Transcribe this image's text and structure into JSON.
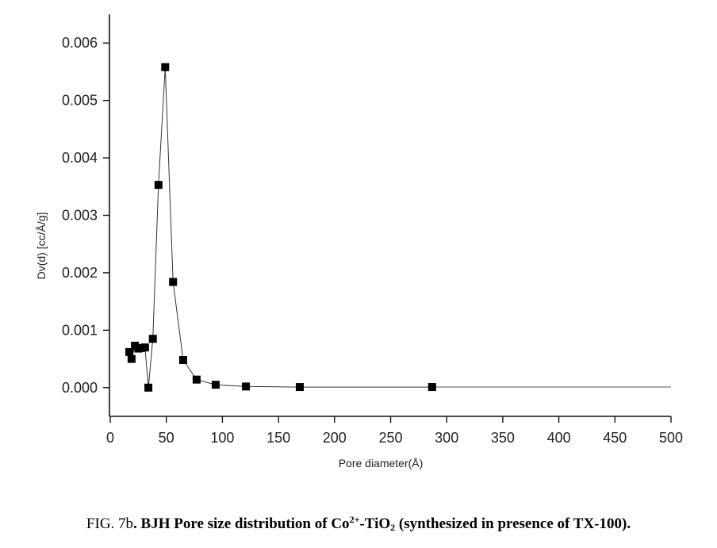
{
  "chart_data": {
    "type": "scatter",
    "xlabel": "Pore diameter(Å)",
    "ylabel": "Dv(d) [cc/Å/g]",
    "xlim": [
      0,
      500
    ],
    "ylim": [
      -0.0005,
      0.0065
    ],
    "xticks": [
      "0",
      "50",
      "100",
      "150",
      "200",
      "250",
      "300",
      "350",
      "400",
      "450",
      "500"
    ],
    "yticks": [
      "0.000",
      "0.001",
      "0.002",
      "0.003",
      "0.004",
      "0.005",
      "0.006"
    ],
    "series": [
      {
        "marker": "square",
        "connected": true,
        "x": [
          17,
          19,
          22,
          25,
          28,
          31,
          34,
          38,
          43,
          49,
          56,
          65,
          77,
          94,
          121,
          169,
          287
        ],
        "y": [
          0.00062,
          0.0005,
          0.00073,
          0.00068,
          0.00069,
          0.0007,
          0.0,
          0.00085,
          0.00353,
          0.00558,
          0.00184,
          0.00048,
          0.00014,
          5e-05,
          2e-05,
          1e-05,
          1e-05
        ],
        "tail_to_x": 500
      }
    ],
    "grid": false,
    "legend": "none"
  },
  "caption": {
    "prefix": "FIG. 7b",
    "bold_text": ". BJH Pore size distribution of Co",
    "sup": "2+",
    "mid": "-TiO",
    "sub": "2",
    "suffix": " (synthesized in presence of TX-100)."
  }
}
